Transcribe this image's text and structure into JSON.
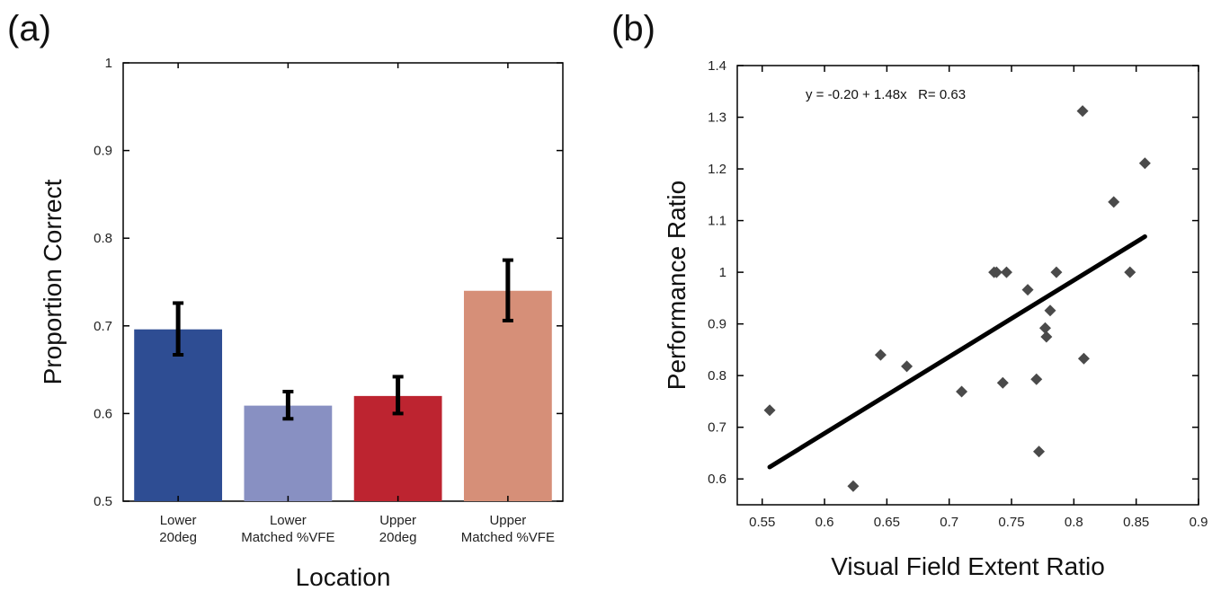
{
  "panel_labels": {
    "a": "(a)",
    "b": "(b)"
  },
  "chart_data": [
    {
      "type": "bar",
      "panel": "(a)",
      "categories": [
        "Lower\n20deg",
        "Lower\nMatched %VFE",
        "Upper\n20deg",
        "Upper\nMatched %VFE"
      ],
      "values": [
        0.696,
        0.609,
        0.62,
        0.74
      ],
      "error_low": [
        0.667,
        0.594,
        0.6,
        0.706
      ],
      "error_high": [
        0.726,
        0.625,
        0.642,
        0.775
      ],
      "colors": [
        "#2e4d93",
        "#8890c2",
        "#bd2430",
        "#d68f78"
      ],
      "xlabel": "Location",
      "ylabel": "Proportion Correct",
      "ylim": [
        0.5,
        1
      ],
      "yticks": [
        0.5,
        0.6,
        0.7,
        0.8,
        0.9,
        1
      ],
      "ytick_labels": [
        "0.5",
        "0.6",
        "0.7",
        "0.8",
        "0.9",
        "1"
      ],
      "grid": false
    },
    {
      "type": "scatter",
      "panel": "(b)",
      "xlabel": "Visual Field Extent Ratio",
      "ylabel": "Performance Ratio",
      "xlim": [
        0.53,
        0.9
      ],
      "ylim": [
        0.55,
        1.4
      ],
      "xticks": [
        0.55,
        0.6,
        0.65,
        0.7,
        0.75,
        0.8,
        0.85,
        0.9
      ],
      "xtick_labels": [
        "0.55",
        "0.6",
        "0.65",
        "0.7",
        "0.75",
        "0.8",
        "0.85",
        "0.9"
      ],
      "yticks": [
        0.6,
        0.7,
        0.8,
        0.9,
        1,
        1.1,
        1.2,
        1.3,
        1.4
      ],
      "ytick_labels": [
        "0.6",
        "0.7",
        "0.8",
        "0.9",
        "1",
        "1.1",
        "1.2",
        "1.3",
        "1.4"
      ],
      "points": [
        {
          "x": 0.556,
          "y": 0.733
        },
        {
          "x": 0.623,
          "y": 0.586
        },
        {
          "x": 0.645,
          "y": 0.84
        },
        {
          "x": 0.666,
          "y": 0.818
        },
        {
          "x": 0.71,
          "y": 0.769
        },
        {
          "x": 0.736,
          "y": 1.0
        },
        {
          "x": 0.738,
          "y": 1.0
        },
        {
          "x": 0.743,
          "y": 0.786
        },
        {
          "x": 0.746,
          "y": 1.0
        },
        {
          "x": 0.763,
          "y": 0.966
        },
        {
          "x": 0.77,
          "y": 0.793
        },
        {
          "x": 0.772,
          "y": 0.653
        },
        {
          "x": 0.777,
          "y": 0.892
        },
        {
          "x": 0.778,
          "y": 0.875
        },
        {
          "x": 0.781,
          "y": 0.926
        },
        {
          "x": 0.786,
          "y": 1.0
        },
        {
          "x": 0.807,
          "y": 1.312
        },
        {
          "x": 0.808,
          "y": 0.833
        },
        {
          "x": 0.832,
          "y": 1.136
        },
        {
          "x": 0.845,
          "y": 1.0
        },
        {
          "x": 0.857,
          "y": 1.211
        }
      ],
      "fit_line": {
        "x": [
          0.556,
          0.857
        ],
        "y": [
          0.623,
          1.069
        ]
      },
      "annotation": "y = -0.20 + 1.48x   R= 0.63",
      "marker_color": "#4a4a4a",
      "grid": false
    }
  ]
}
